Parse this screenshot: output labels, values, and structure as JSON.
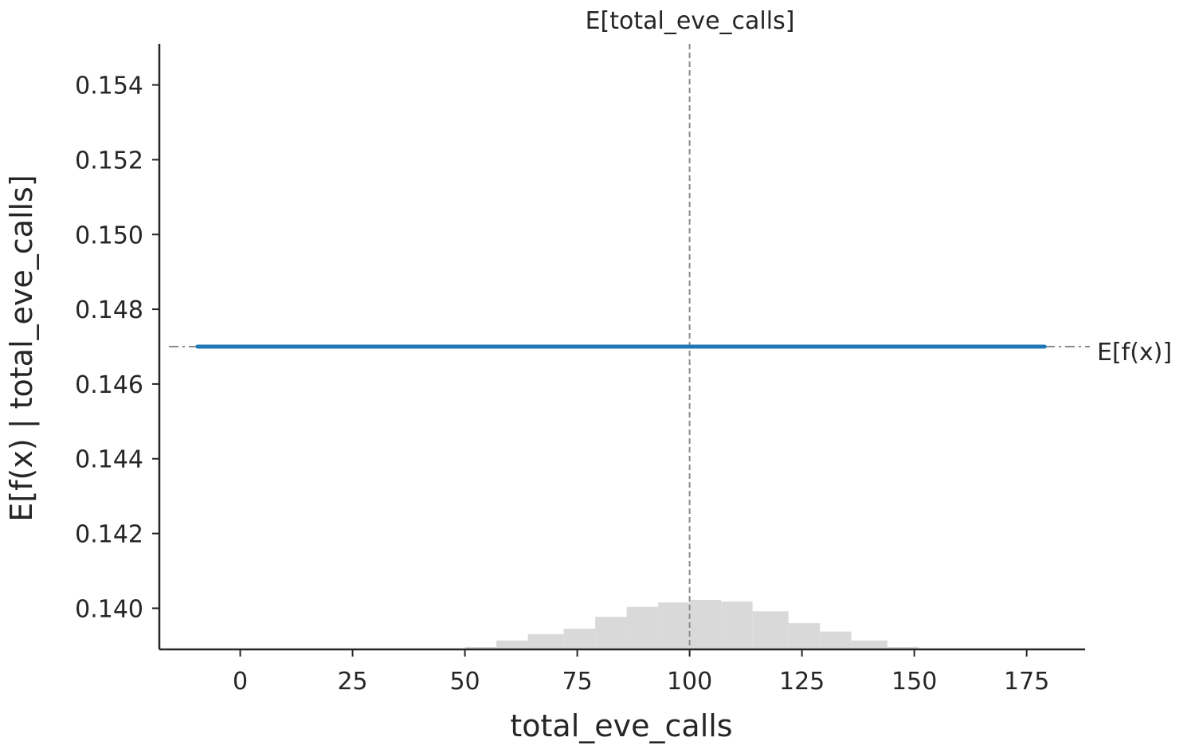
{
  "chart_data": {
    "type": "line",
    "title": "",
    "xlabel": "total_eve_calls",
    "ylabel": "E[f(x) | total_eve_calls]",
    "xlim": [
      -18,
      188
    ],
    "ylim": [
      0.1389,
      0.1551
    ],
    "x_ticks": [
      0,
      25,
      50,
      75,
      100,
      125,
      150,
      175
    ],
    "y_ticks": [
      0.14,
      0.142,
      0.144,
      0.146,
      0.148,
      0.15,
      0.152,
      0.154
    ],
    "y_tick_labels": [
      "0.140",
      "0.142",
      "0.144",
      "0.146",
      "0.148",
      "0.150",
      "0.152",
      "0.154"
    ],
    "series": [
      {
        "x": [
          -9.5,
          179
        ],
        "y": [
          0.147,
          0.147
        ],
        "color": "#1f77b4"
      }
    ],
    "reference_lines": {
      "mean_x": {
        "value": 100,
        "label": "E[total_eve_calls]"
      },
      "mean_y": {
        "value": 0.147,
        "label": "E[f(x)]"
      }
    },
    "histogram": {
      "bin_edges": [
        0,
        50,
        57,
        64,
        72,
        79,
        86,
        93,
        100,
        107,
        114,
        122,
        129,
        136,
        144,
        151
      ],
      "relative_heights": [
        0.0,
        0.05,
        0.18,
        0.31,
        0.42,
        0.66,
        0.86,
        0.95,
        1.0,
        0.97,
        0.77,
        0.53,
        0.36,
        0.18,
        0.05
      ],
      "color": "#d9d9d9"
    },
    "grid": false
  }
}
